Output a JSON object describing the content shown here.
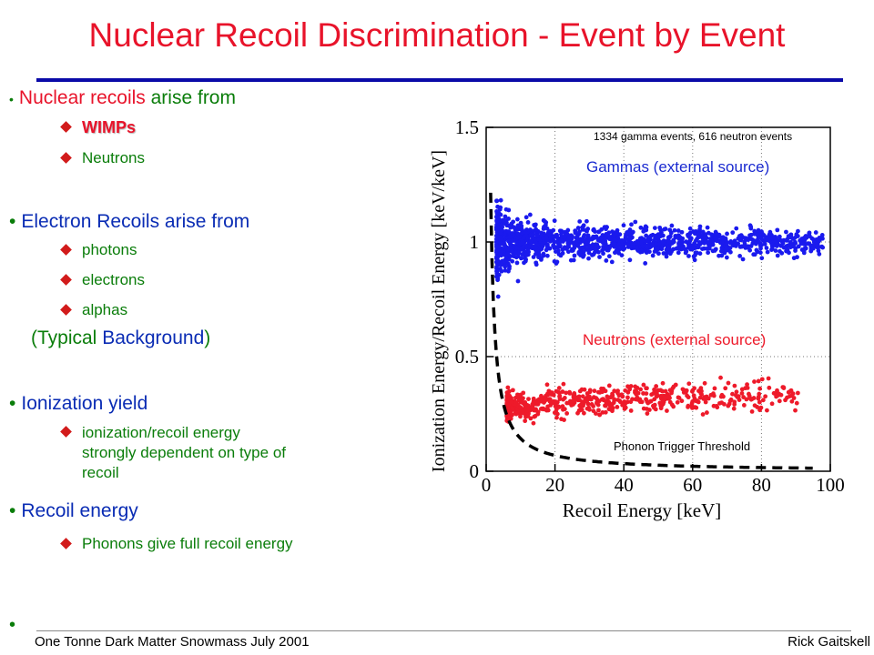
{
  "title": "Nuclear Recoil Discrimination - Event by Event",
  "bullets": {
    "nr_red": "Nuclear recoils",
    "nr_green": " arise from",
    "wimps": "WIMPs",
    "neutrons": "Neutrons",
    "er_head": "Electron Recoils arise from",
    "photons": "photons",
    "electrons": "electrons",
    "alphas": "alphas",
    "typ_open": "(Typical ",
    "typ_word": "Background",
    "typ_close": ")",
    "ion_head": "Ionization yield",
    "ion_sub1": "ionization/recoil energy",
    "ion_sub2": "strongly dependent on type of",
    "ion_sub3": "recoil",
    "re_head": "Recoil energy",
    "re_sub": "Phonons give full recoil energy"
  },
  "footer": {
    "left": "One Tonne Dark Matter Snowmass July 2001",
    "right": "Rick Gaitskell"
  },
  "chart_data": {
    "type": "scatter",
    "xlabel": "Recoil Energy [keV]",
    "ylabel": "Ionization Energy/Recoil Energy [keV/keV]",
    "xlim": [
      0,
      100
    ],
    "ylim": [
      0,
      1.5
    ],
    "xticks": [
      "0",
      "20",
      "40",
      "60",
      "80",
      "100"
    ],
    "yticks": [
      "0",
      "0.5",
      "1",
      "1.5"
    ],
    "grid": "dotted",
    "annotations": {
      "counts": "1334 gamma events, 616 neutron events",
      "gammas": "Gammas (external source)",
      "neutrons": "Neutrons (external source)",
      "threshold": "Phonon Trigger Threshold"
    },
    "series": [
      {
        "name": "Gammas (external source)",
        "color": "#1a1aee",
        "count": 1334,
        "yield_center": 1.0,
        "x_range": [
          3,
          100
        ]
      },
      {
        "name": "Neutrons (external source)",
        "color": "#ee1a2a",
        "count": 616,
        "yield_center": 0.3,
        "x_range": [
          5,
          95
        ]
      }
    ],
    "threshold_curve": {
      "formula": "y = 1.6 / x^1.05",
      "x_range": [
        1,
        95
      ]
    }
  }
}
